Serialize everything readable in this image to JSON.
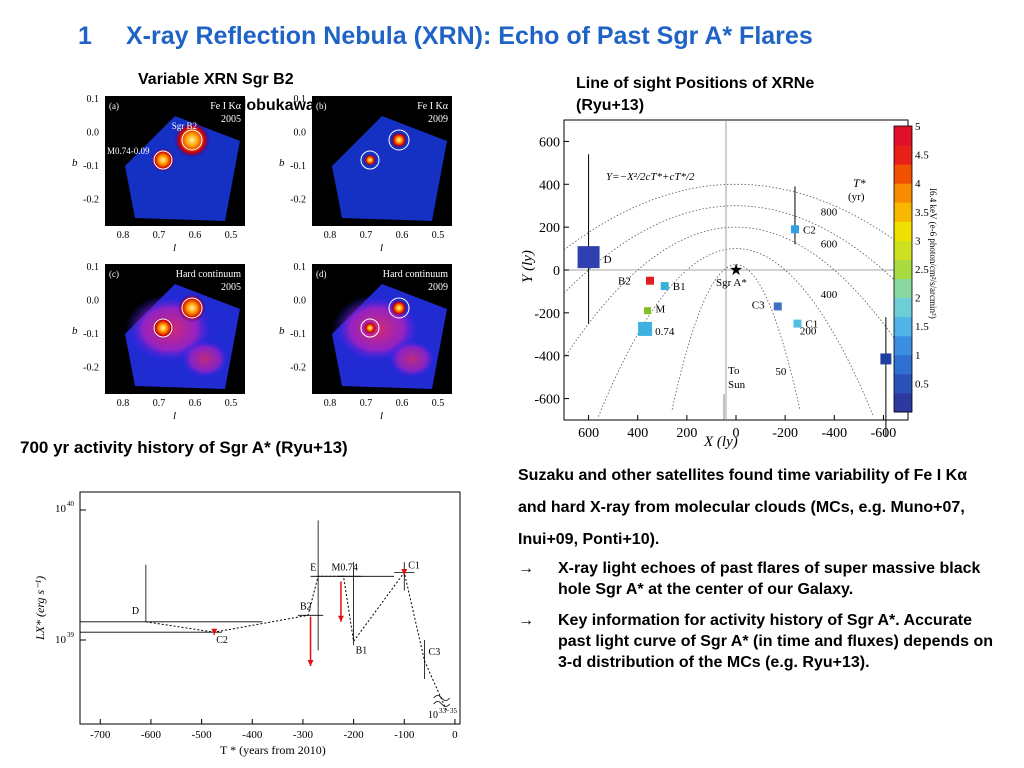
{
  "slide": {
    "number": "1",
    "title": "X-ray Reflection Nebula (XRN): Echo of Past Sgr A* Flares"
  },
  "xrn_figure": {
    "caption_line1": "Variable XRN Sgr B2",
    "caption_line2": "(Inui+09, Nobukawa+11)",
    "b_label": "b",
    "l_label": "l",
    "yticks": [
      "0.1",
      "0.0",
      "-0.1",
      "-0.2"
    ],
    "xticks": [
      "0.8",
      "0.7",
      "0.6",
      "0.5"
    ],
    "panels": [
      {
        "tag": "(a)",
        "label": "Fe I Kα",
        "year": "2005",
        "extra": "Sgr B2",
        "extra2": "M0.74-0.09"
      },
      {
        "tag": "(b)",
        "label": "Fe I Kα",
        "year": "2009"
      },
      {
        "tag": "(c)",
        "label": "Hard continuum",
        "year": "2005"
      },
      {
        "tag": "(d)",
        "label": "Hard continuum",
        "year": "2009"
      }
    ]
  },
  "los_figure": {
    "caption_line1": "Line of sight Positions of XRNe",
    "caption_line2": "(Ryu+13)",
    "equation": "Y=−X²/2cT*+cT*/2",
    "tstar_label": "T*",
    "tstar_unit": "(yr)",
    "yaxis_label": "Y (ly)",
    "xaxis_label": "X (ly)",
    "colorbar_title": "I6.4 keV (e-6 photon/cm²/s/arcmin²)",
    "sgra_label": "Sgr A*",
    "to_sun_label": "To",
    "to_sun_label2": "Sun",
    "contour_labels": [
      "800",
      "600",
      "400",
      "200",
      "50"
    ],
    "colorbar_ticks": [
      "5",
      "4.5",
      "4",
      "3.5",
      "3",
      "2.5",
      "2",
      "1.5",
      "1",
      "0.5"
    ]
  },
  "history_caption": "700 yr activity history of  Sgr A* (Ryu+13)",
  "history_plot": {
    "ylabel": "LX* (erg s⁻¹)",
    "xlabel": "T * (years from 2010)",
    "ytick_top": "10",
    "ytick_top_exp": "40",
    "ytick_bot": "10",
    "ytick_bot_exp": "39",
    "floor_label": "10",
    "floor_exp": "33−35"
  },
  "bullets": {
    "intro": "Suzaku and other satellites  found time variability of Fe I Kα and hard X-ray from molecular clouds (MCs, e.g. Muno+07, Inui+09, Ponti+10).",
    "item1": "X-ray light echoes of past flares of super massive black hole Sgr A* at the center of our Galaxy.",
    "item2": "Key information for activity history of Sgr A*. Accurate past light curve of Sgr A* (in time and fluxes)  depends on 3-d distribution of the MCs (e.g. Ryu+13)."
  },
  "chart_data": [
    {
      "type": "scatter",
      "title": "Line of sight Positions of XRNe",
      "xlabel": "X (ly)",
      "ylabel": "Y (ly)",
      "xlim": [
        700,
        -700
      ],
      "ylim": [
        -700,
        700
      ],
      "x_ticks": [
        600,
        400,
        200,
        0,
        -200,
        -400,
        -600
      ],
      "y_ticks": [
        600,
        400,
        200,
        0,
        -200,
        -400,
        -600
      ],
      "points": [
        {
          "name": "D",
          "x": 600,
          "y": 60,
          "yerr_low": -250,
          "yerr_high": 540,
          "color": "#3040b0"
        },
        {
          "name": "B2",
          "x": 350,
          "y": -50,
          "color": "#e02020"
        },
        {
          "name": "B1",
          "x": 290,
          "y": -75,
          "color": "#3ab0d8"
        },
        {
          "name": "M",
          "x": 360,
          "y": -190,
          "color": "#80c020"
        },
        {
          "name": "0.74",
          "x": 370,
          "y": -275,
          "color": "#40b0e0"
        },
        {
          "name": "Sgr A*",
          "x": 0,
          "y": 0,
          "color": "#000000"
        },
        {
          "name": "C3",
          "x": -170,
          "y": -170,
          "color": "#4070c0"
        },
        {
          "name": "C1",
          "x": -250,
          "y": -250,
          "color": "#50c0e0"
        },
        {
          "name": "C2",
          "x": -240,
          "y": 190,
          "color": "#30a0e0"
        },
        {
          "name": "E",
          "x": -610,
          "y": -415,
          "color": "#2040a0"
        }
      ],
      "contours_tstar_yr": [
        800,
        600,
        400,
        200,
        50
      ],
      "colorbar_range": [
        0,
        5
      ]
    },
    {
      "type": "line",
      "title": "700 yr activity history of  Sgr A* (Ryu+13)",
      "xlabel": "T * (years from 2010)",
      "ylabel": "LX* (erg s⁻¹)",
      "xlim": [
        -740,
        10
      ],
      "x_ticks": [
        -700,
        -600,
        -500,
        -400,
        -300,
        -200,
        -100,
        0
      ],
      "y_scale": "log",
      "points": [
        {
          "name": "D",
          "x": -610,
          "log_y": 39.14
        },
        {
          "name": "C2",
          "x": -475,
          "log_y": 39.06
        },
        {
          "name": "B2",
          "x": -290,
          "log_y": 39.19
        },
        {
          "name": "E",
          "x": -270,
          "log_y": 39.49
        },
        {
          "name": "M0.74",
          "x": -220,
          "log_y": 39.49
        },
        {
          "name": "B1",
          "x": -200,
          "log_y": 38.99
        },
        {
          "name": "C1",
          "x": -100,
          "log_y": 39.52
        },
        {
          "name": "C3",
          "x": -60,
          "log_y": 38.84
        }
      ]
    }
  ]
}
